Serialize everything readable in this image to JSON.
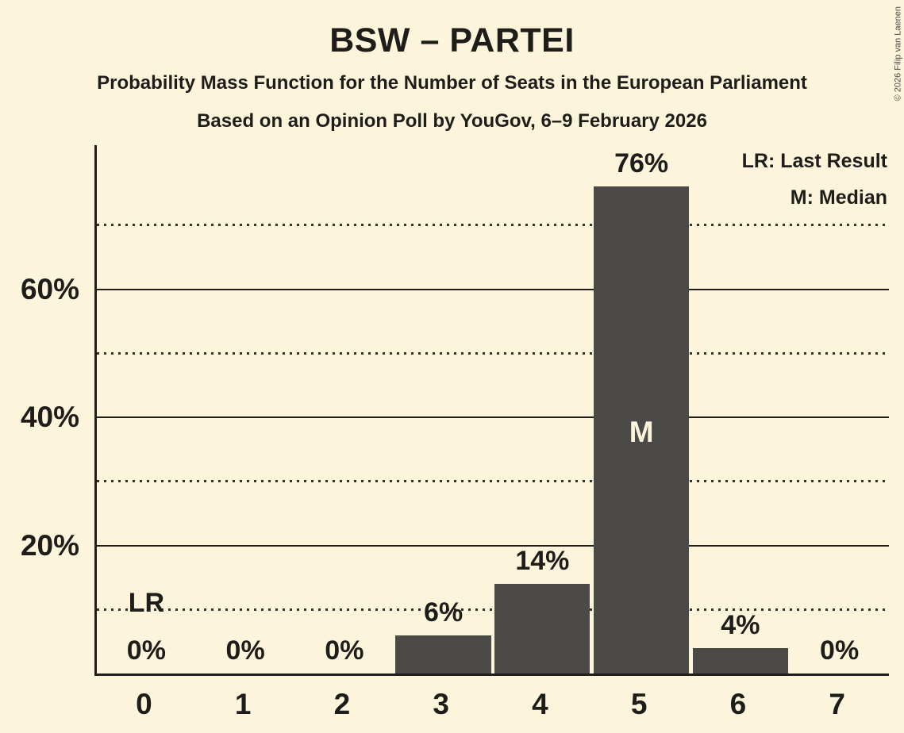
{
  "header": {
    "title": "BSW – PARTEI",
    "subtitle1": "Probability Mass Function for the Number of Seats in the European Parliament",
    "subtitle2": "Based on an Opinion Poll by YouGov, 6–9 February 2026"
  },
  "legend": {
    "lr_label": "LR: Last Result",
    "m_label": "M: Median"
  },
  "copyright": "© 2026 Filip van Laenen",
  "colors": {
    "background": "#FCF5DC",
    "bar": "#4C4A47",
    "text": "#1F1D19",
    "median_text": "#FBF4DA",
    "gridline": "#201E1A"
  },
  "chart_data": {
    "type": "bar",
    "title": "BSW – PARTEI",
    "xlabel": "",
    "ylabel": "",
    "categories": [
      "0",
      "1",
      "2",
      "3",
      "4",
      "5",
      "6",
      "7"
    ],
    "values": [
      0,
      0,
      0,
      6,
      14,
      76,
      4,
      0
    ],
    "value_labels": [
      "0%",
      "0%",
      "0%",
      "6%",
      "14%",
      "76%",
      "4%",
      "0%"
    ],
    "ylim": [
      0,
      82.5
    ],
    "y_ticks": [
      {
        "value": 20,
        "label": "20%"
      },
      {
        "value": 40,
        "label": "40%"
      },
      {
        "value": 60,
        "label": "60%"
      }
    ],
    "gridlines": {
      "solid": [
        20,
        40,
        60
      ],
      "dotted": [
        10,
        30,
        50,
        70
      ]
    },
    "legend_position": "top-right",
    "annotations": {
      "last_result": {
        "category_index": 0,
        "label": "LR"
      },
      "median": {
        "category_index": 5,
        "label": "M"
      }
    }
  }
}
